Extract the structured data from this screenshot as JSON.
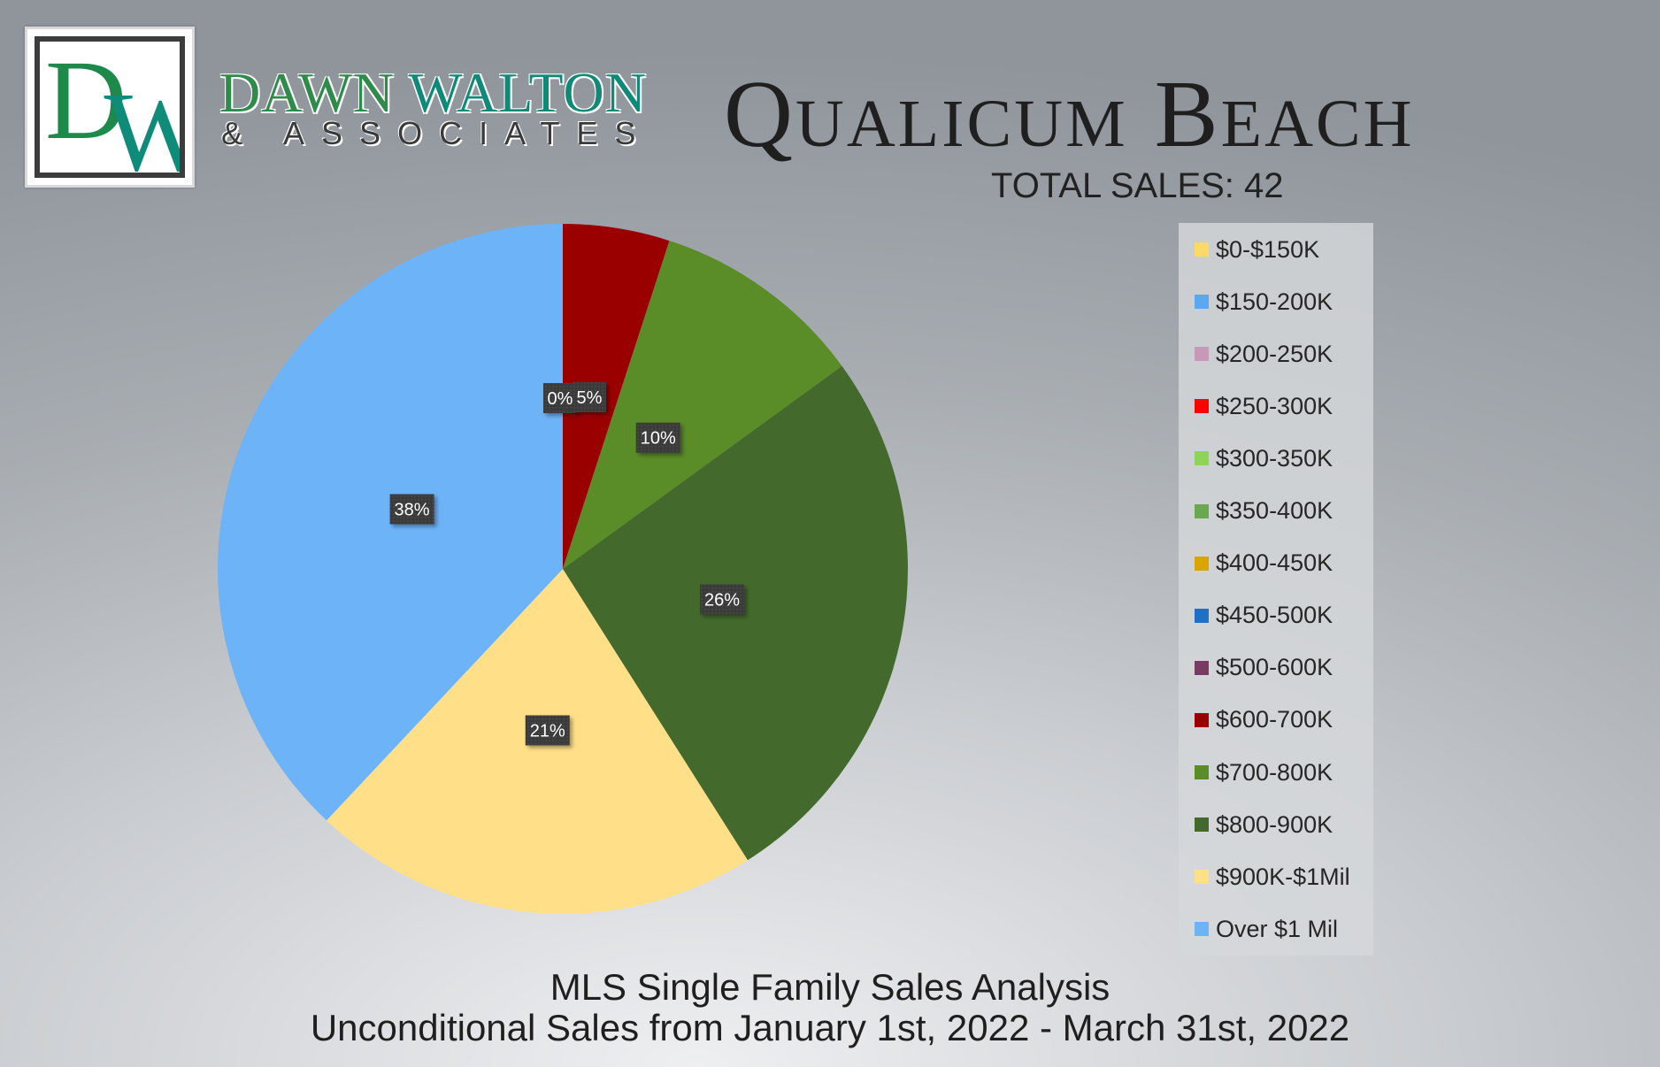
{
  "brand": {
    "logo_d": "D",
    "logo_w": "W",
    "name_part1": "DAWN",
    "name_part2": "WALTON",
    "subtitle": "& ASSOCIATES"
  },
  "header": {
    "title": "Qualicum Beach",
    "total_sales": "TOTAL SALES: 42"
  },
  "footer": {
    "line1": "MLS Single Family Sales Analysis",
    "line2": "Unconditional Sales from January 1st, 2022 - March 31st, 2022"
  },
  "chart_data": {
    "type": "pie",
    "categories": [
      "$0-$150K",
      "$150-200K",
      "$200-250K",
      "$250-300K",
      "$300-350K",
      "$350-400K",
      "$400-450K",
      "$450-500K",
      "$500-600K",
      "$600-700K",
      "$700-800K",
      "$800-900K",
      "$900K-$1Mil",
      "Over $1 Mil"
    ],
    "values": [
      0,
      0,
      0,
      0,
      0,
      0,
      0,
      0,
      0,
      5,
      10,
      26,
      21,
      38
    ],
    "labels": [
      "",
      "",
      "",
      "",
      "",
      "",
      "",
      "",
      "0%",
      "5%",
      "10%",
      "26%",
      "21%",
      "38%"
    ],
    "colors": [
      "#ffd966",
      "#5aa9f0",
      "#c997b8",
      "#ff0000",
      "#8fd45a",
      "#6aa84f",
      "#d9a600",
      "#1f6fc4",
      "#7a3b62",
      "#9b0000",
      "#5a8c27",
      "#436a2c",
      "#ffdf88",
      "#6db3f7"
    ],
    "legend_position": "right",
    "start_angle": "top, clockwise"
  }
}
